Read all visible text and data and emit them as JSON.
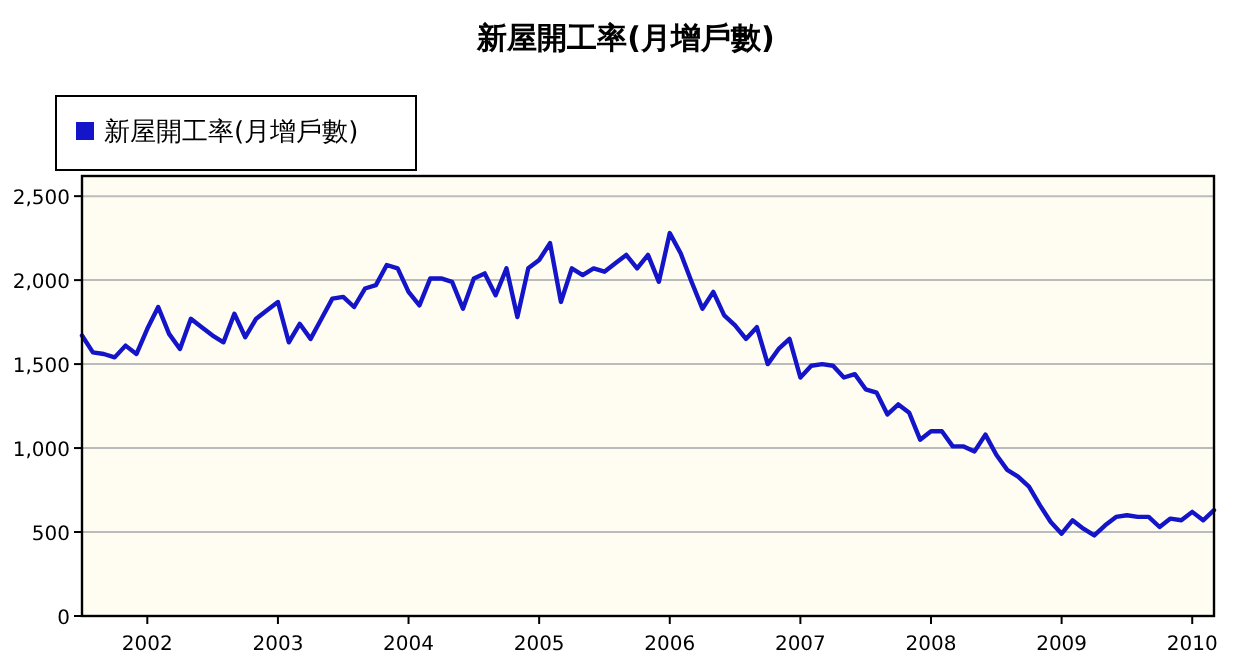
{
  "chart_data": {
    "type": "line",
    "title": "新屋開工率(月增戶數)",
    "legend": "top left",
    "grid": "y",
    "marker": "none",
    "line_style": "solid",
    "xlim": [
      "2001-07",
      "2010-03"
    ],
    "xticks": [
      "2002",
      "2003",
      "2004",
      "2005",
      "2006",
      "2007",
      "2008",
      "2009",
      "2010"
    ],
    "ylim": [
      0,
      2620
    ],
    "yticks": [
      0,
      500,
      {
        "value": 1000,
        "label": "1,000"
      },
      {
        "value": 1500,
        "label": "1,500"
      },
      {
        "value": 2000,
        "label": "2,000"
      },
      {
        "value": 2500,
        "label": "2,500"
      }
    ],
    "x": [
      "2001-07",
      "2001-08",
      "2001-09",
      "2001-10",
      "2001-11",
      "2001-12",
      "2002-01",
      "2002-02",
      "2002-03",
      "2002-04",
      "2002-05",
      "2002-06",
      "2002-07",
      "2002-08",
      "2002-09",
      "2002-10",
      "2002-11",
      "2002-12",
      "2003-01",
      "2003-02",
      "2003-03",
      "2003-04",
      "2003-05",
      "2003-06",
      "2003-07",
      "2003-08",
      "2003-09",
      "2003-10",
      "2003-11",
      "2003-12",
      "2004-01",
      "2004-02",
      "2004-03",
      "2004-04",
      "2004-05",
      "2004-06",
      "2004-07",
      "2004-08",
      "2004-09",
      "2004-10",
      "2004-11",
      "2004-12",
      "2005-01",
      "2005-02",
      "2005-03",
      "2005-04",
      "2005-05",
      "2005-06",
      "2005-07",
      "2005-08",
      "2005-09",
      "2005-10",
      "2005-11",
      "2005-12",
      "2006-01",
      "2006-02",
      "2006-03",
      "2006-04",
      "2006-05",
      "2006-06",
      "2006-07",
      "2006-08",
      "2006-09",
      "2006-10",
      "2006-11",
      "2006-12",
      "2007-01",
      "2007-02",
      "2007-03",
      "2007-04",
      "2007-05",
      "2007-06",
      "2007-07",
      "2007-08",
      "2007-09",
      "2007-10",
      "2007-11",
      "2007-12",
      "2008-01",
      "2008-02",
      "2008-03",
      "2008-04",
      "2008-05",
      "2008-06",
      "2008-07",
      "2008-08",
      "2008-09",
      "2008-10",
      "2008-11",
      "2008-12",
      "2009-01",
      "2009-02",
      "2009-03",
      "2009-04",
      "2009-05",
      "2009-06",
      "2009-07",
      "2009-08",
      "2009-09",
      "2009-10",
      "2009-11",
      "2009-12",
      "2010-01",
      "2010-02",
      "2010-03"
    ],
    "series": [
      {
        "name": "新屋開工率(月增戶數)",
        "color": "#1414c8",
        "values": [
          1670,
          1570,
          1560,
          1540,
          1610,
          1560,
          1710,
          1840,
          1680,
          1590,
          1770,
          1720,
          1670,
          1630,
          1800,
          1660,
          1770,
          1820,
          1870,
          1630,
          1740,
          1650,
          1770,
          1890,
          1900,
          1840,
          1950,
          1970,
          2090,
          2070,
          1930,
          1850,
          2010,
          2010,
          1990,
          1830,
          2010,
          2040,
          1910,
          2070,
          1780,
          2070,
          2120,
          2220,
          1870,
          2070,
          2030,
          2070,
          2050,
          2100,
          2150,
          2070,
          2150,
          1990,
          2280,
          2160,
          1990,
          1830,
          1930,
          1790,
          1730,
          1650,
          1720,
          1500,
          1590,
          1650,
          1420,
          1490,
          1500,
          1490,
          1420,
          1440,
          1350,
          1330,
          1200,
          1260,
          1210,
          1050,
          1100,
          1100,
          1010,
          1010,
          980,
          1080,
          960,
          870,
          830,
          770,
          660,
          560,
          490,
          570,
          520,
          480,
          540,
          590,
          600,
          590,
          590,
          530,
          580,
          570,
          620,
          570,
          630
        ]
      }
    ]
  }
}
